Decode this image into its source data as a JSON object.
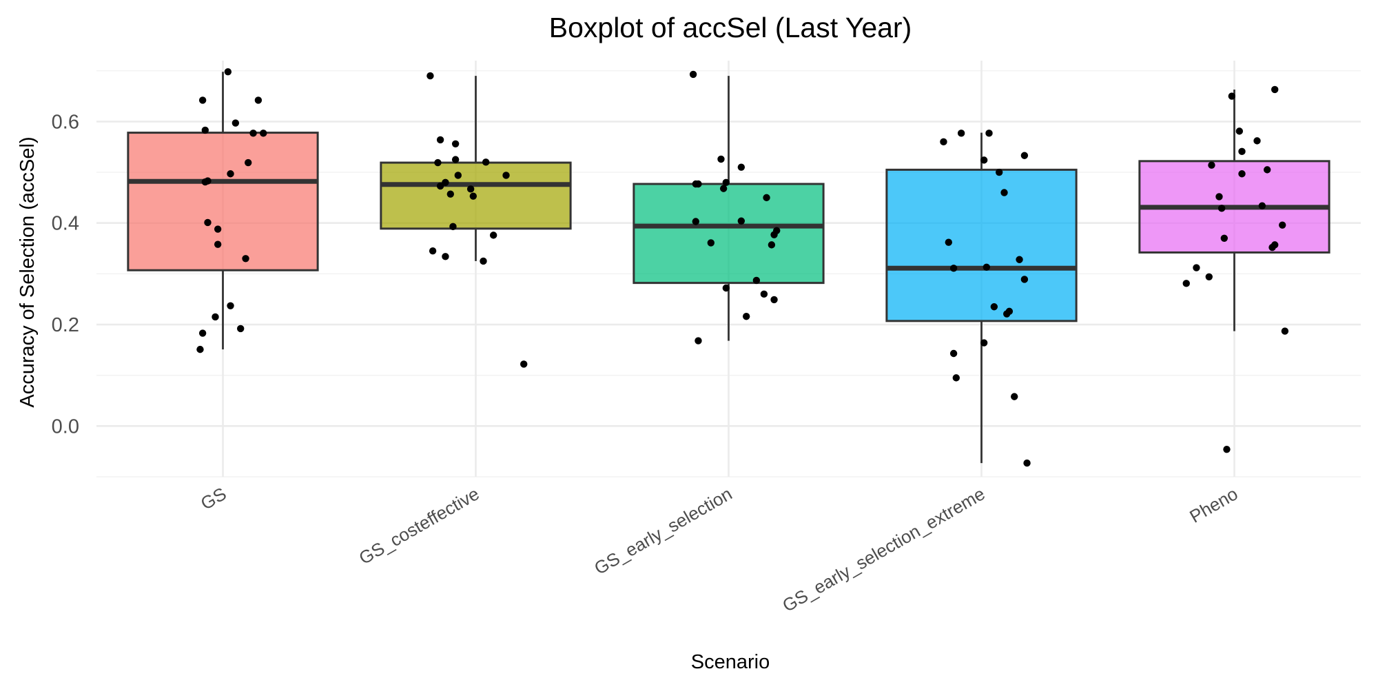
{
  "chart_data": {
    "type": "boxplot",
    "title": "Boxplot of accSel (Last Year)",
    "xlabel": "Scenario",
    "ylabel": "Accuracy of Selection (accSel)",
    "ylim": [
      -0.1,
      0.72
    ],
    "yticks": [
      0.0,
      0.2,
      0.4,
      0.6
    ],
    "ytick_labels": [
      "0.0",
      "0.2",
      "0.4",
      "0.6"
    ],
    "grid": true,
    "legend": "none",
    "categories": [
      {
        "name": "GS",
        "color": "#F8766D",
        "stats": {
          "whisker_low": 0.151,
          "q1": 0.307,
          "median": 0.482,
          "q3": 0.578,
          "whisker_high": 0.698
        },
        "points": [
          [
            -0.08,
            0.642
          ],
          [
            -0.07,
            0.583
          ],
          [
            0.14,
            0.642
          ],
          [
            0.05,
            0.597
          ],
          [
            0.12,
            0.577
          ],
          [
            0.16,
            0.577
          ],
          [
            0.1,
            0.519
          ],
          [
            -0.07,
            0.481
          ],
          [
            -0.06,
            0.483
          ],
          [
            0.03,
            0.497
          ],
          [
            -0.06,
            0.401
          ],
          [
            -0.02,
            0.388
          ],
          [
            -0.02,
            0.358
          ],
          [
            0.09,
            0.33
          ],
          [
            0.03,
            0.237
          ],
          [
            -0.03,
            0.215
          ],
          [
            0.07,
            0.192
          ],
          [
            -0.08,
            0.183
          ],
          [
            -0.09,
            0.151
          ],
          [
            0.02,
            0.698
          ]
        ]
      },
      {
        "name": "GS_costeffective",
        "color": "#A3A500",
        "stats": {
          "whisker_low": 0.325,
          "q1": 0.389,
          "median": 0.476,
          "q3": 0.519,
          "whisker_high": 0.69
        },
        "points": [
          [
            -0.18,
            0.69
          ],
          [
            -0.14,
            0.564
          ],
          [
            -0.08,
            0.556
          ],
          [
            -0.15,
            0.519
          ],
          [
            -0.08,
            0.525
          ],
          [
            0.04,
            0.52
          ],
          [
            -0.12,
            0.48
          ],
          [
            -0.14,
            0.473
          ],
          [
            -0.07,
            0.494
          ],
          [
            -0.1,
            0.457
          ],
          [
            -0.01,
            0.453
          ],
          [
            0.12,
            0.494
          ],
          [
            -0.02,
            0.467
          ],
          [
            -0.09,
            0.393
          ],
          [
            0.07,
            0.376
          ],
          [
            -0.17,
            0.345
          ],
          [
            0.03,
            0.325
          ],
          [
            -0.12,
            0.334
          ],
          [
            0.19,
            0.122
          ]
        ]
      },
      {
        "name": "GS_early_selection",
        "color": "#00BF7D",
        "stats": {
          "whisker_low": 0.168,
          "q1": 0.282,
          "median": 0.394,
          "q3": 0.477,
          "whisker_high": 0.69
        },
        "points": [
          [
            -0.14,
            0.693
          ],
          [
            -0.13,
            0.477
          ],
          [
            -0.12,
            0.477
          ],
          [
            0.05,
            0.51
          ],
          [
            -0.03,
            0.526
          ],
          [
            -0.01,
            0.48
          ],
          [
            -0.02,
            0.468
          ],
          [
            0.15,
            0.45
          ],
          [
            -0.13,
            0.403
          ],
          [
            0.05,
            0.404
          ],
          [
            0.19,
            0.385
          ],
          [
            0.18,
            0.377
          ],
          [
            -0.07,
            0.361
          ],
          [
            0.17,
            0.357
          ],
          [
            0.11,
            0.287
          ],
          [
            -0.01,
            0.272
          ],
          [
            0.14,
            0.26
          ],
          [
            0.18,
            0.249
          ],
          [
            0.07,
            0.216
          ],
          [
            -0.12,
            0.168
          ]
        ]
      },
      {
        "name": "GS_early_selection_extreme",
        "color": "#00B0F6",
        "stats": {
          "whisker_low": -0.073,
          "q1": 0.207,
          "median": 0.311,
          "q3": 0.505,
          "whisker_high": 0.578
        },
        "points": [
          [
            -0.15,
            0.56
          ],
          [
            -0.08,
            0.577
          ],
          [
            0.01,
            0.524
          ],
          [
            0.03,
            0.577
          ],
          [
            0.17,
            0.533
          ],
          [
            0.07,
            0.5
          ],
          [
            0.09,
            0.46
          ],
          [
            -0.13,
            0.362
          ],
          [
            -0.11,
            0.311
          ],
          [
            0.02,
            0.313
          ],
          [
            0.15,
            0.328
          ],
          [
            0.17,
            0.289
          ],
          [
            0.11,
            0.226
          ],
          [
            0.1,
            0.221
          ],
          [
            0.05,
            0.235
          ],
          [
            0.01,
            0.164
          ],
          [
            -0.11,
            0.143
          ],
          [
            -0.1,
            0.095
          ],
          [
            0.13,
            0.058
          ],
          [
            0.18,
            -0.073
          ]
        ]
      },
      {
        "name": "Pheno",
        "color": "#E76BF3",
        "stats": {
          "whisker_low": 0.187,
          "q1": 0.342,
          "median": 0.431,
          "q3": 0.522,
          "whisker_high": 0.663
        },
        "points": [
          [
            0.16,
            0.663
          ],
          [
            -0.01,
            0.65
          ],
          [
            0.02,
            0.581
          ],
          [
            0.09,
            0.562
          ],
          [
            0.03,
            0.541
          ],
          [
            -0.09,
            0.514
          ],
          [
            0.13,
            0.505
          ],
          [
            0.03,
            0.497
          ],
          [
            -0.06,
            0.452
          ],
          [
            -0.05,
            0.429
          ],
          [
            0.11,
            0.434
          ],
          [
            0.19,
            0.396
          ],
          [
            0.16,
            0.357
          ],
          [
            0.15,
            0.352
          ],
          [
            -0.04,
            0.37
          ],
          [
            -0.15,
            0.312
          ],
          [
            -0.1,
            0.294
          ],
          [
            -0.19,
            0.281
          ],
          [
            0.2,
            0.187
          ],
          [
            -0.03,
            -0.046
          ]
        ]
      }
    ]
  }
}
